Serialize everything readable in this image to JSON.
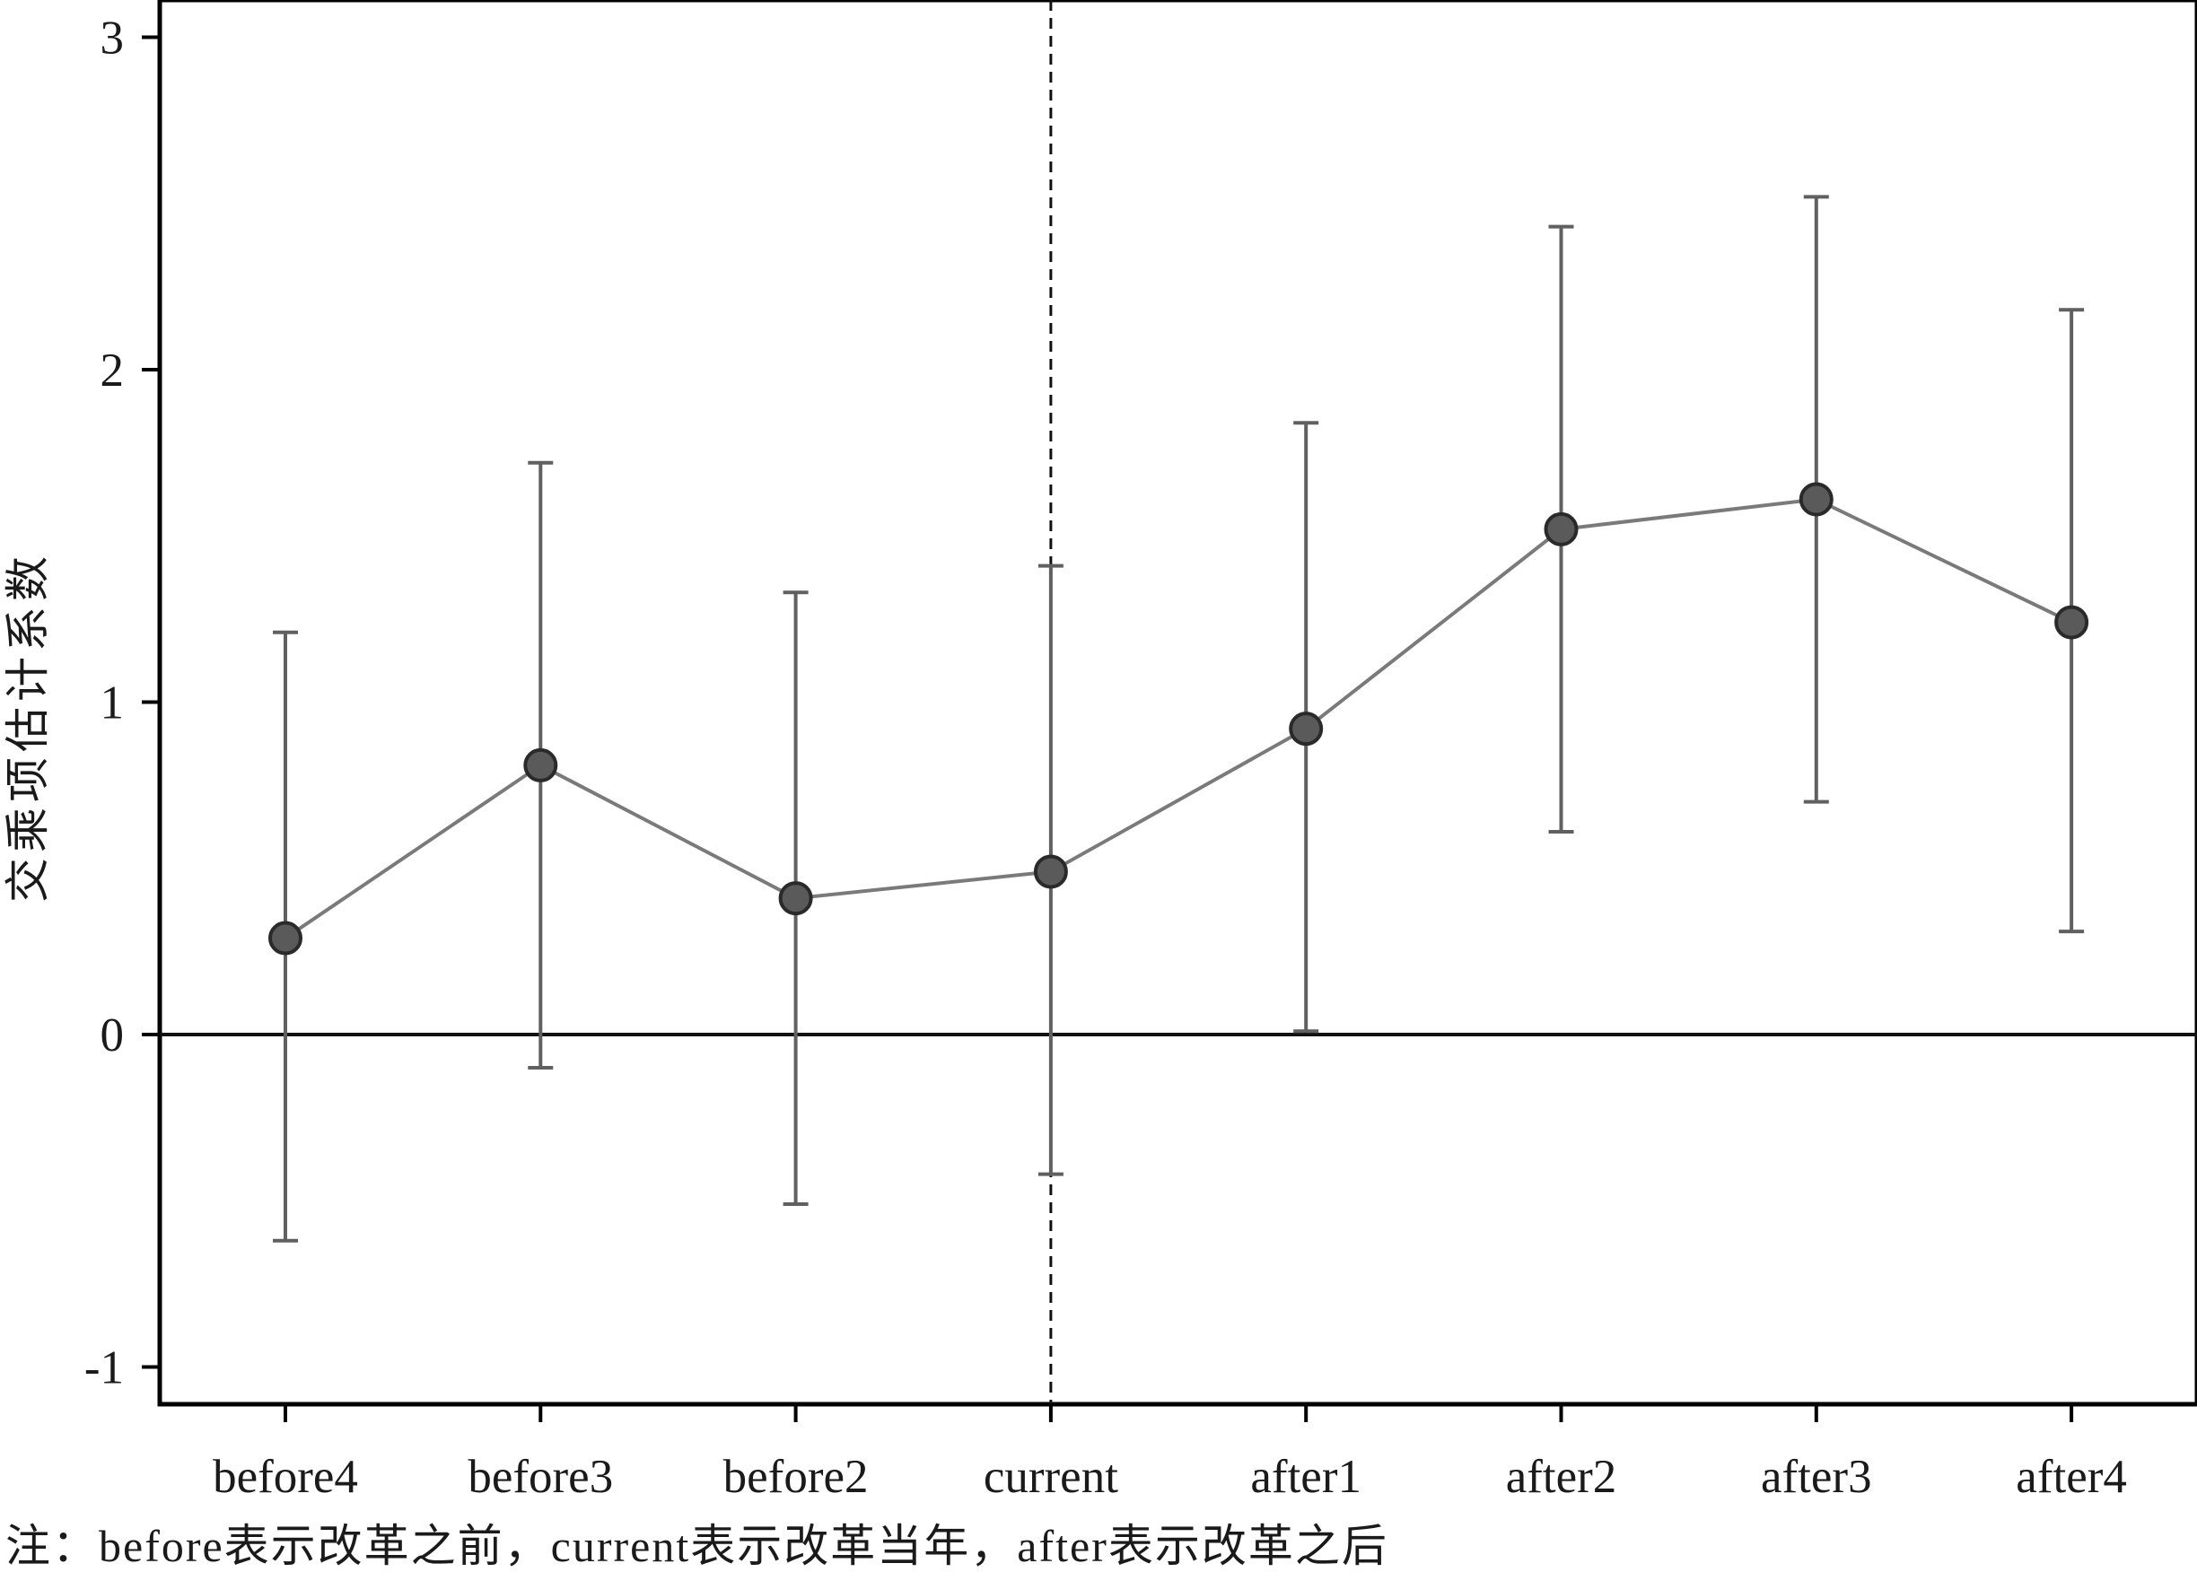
{
  "chart_data": {
    "type": "line",
    "title": "",
    "xlabel": "",
    "ylabel": "交乘项估计系数",
    "ylim": [
      -1.15,
      3.1
    ],
    "yticks": [
      3,
      2,
      1,
      0,
      -1
    ],
    "yticks_labels": [
      "3",
      "2",
      "1",
      "0",
      "-1"
    ],
    "categories": [
      "before4",
      "before3",
      "before2",
      "current",
      "after1",
      "after2",
      "after3",
      "after4"
    ],
    "estimates": [
      0.29,
      0.81,
      0.41,
      0.49,
      0.92,
      1.52,
      1.61,
      1.24
    ],
    "ci_upper": [
      1.21,
      1.72,
      1.33,
      1.41,
      1.84,
      2.43,
      2.52,
      2.18
    ],
    "ci_lower": [
      -0.62,
      -0.1,
      -0.51,
      -0.42,
      0.01,
      0.61,
      0.7,
      0.31
    ],
    "reference_lines": {
      "horizontal_y": 0,
      "vertical_category": "current",
      "vertical_style": "dashed"
    },
    "grid": false,
    "colors": {
      "line": "#7a7a7a",
      "marker": "#5a5a5a",
      "errorbar": "#606060",
      "axis": "#000000"
    }
  },
  "note": "注：before表示改革之前，current表示改革当年，after表示改革之后"
}
